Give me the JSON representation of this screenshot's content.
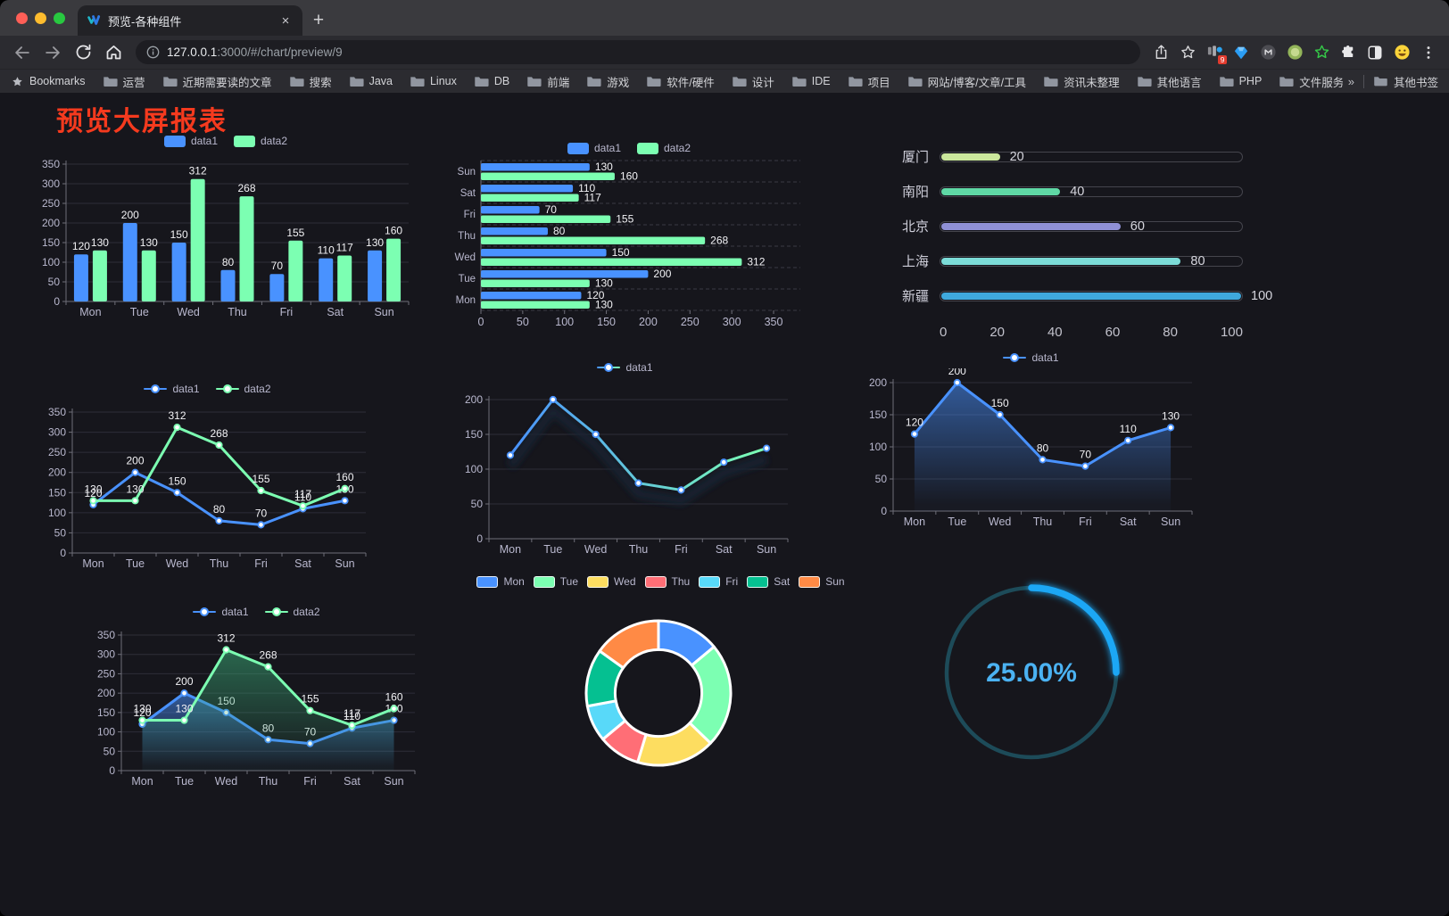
{
  "browser": {
    "tab": {
      "title": "预览-各种组件",
      "close_glyph": "×"
    },
    "new_tab_glyph": "+",
    "url": {
      "host": "127.0.0.1",
      "rest": ":3000/#/chart/preview/9"
    },
    "extension_badge": "9",
    "bookmarks": {
      "root_label": "Bookmarks",
      "folders": [
        "运营",
        "近期需要读的文章",
        "搜索",
        "Java",
        "Linux",
        "DB",
        "前端",
        "游戏",
        "软件/硬件",
        "设计",
        "IDE",
        "项目",
        "网站/博客/文章/工具",
        "资讯未整理",
        "其他语言",
        "PHP",
        "文件服务器"
      ],
      "overflow_chevron": "»",
      "other_label": "其他书签"
    }
  },
  "page": {
    "title": "预览大屏报表"
  },
  "colors": {
    "blue": "#4992ff",
    "green": "#7cffb2",
    "yellow": "#fddd60",
    "red": "#ff6e76",
    "cyan": "#58d9f9",
    "teal": "#05c091",
    "orange": "#ff8a45",
    "axis_text": "#b9b8ce",
    "grid": "#2e2e38",
    "axis_line": "#6e6e78",
    "dash_sep": "#3a3a44",
    "value_label": "#f2f2f5",
    "title_red": "#f53a1e",
    "gauge_track": "#1d4b59",
    "gauge_arc": "#1aa7f5",
    "gauge_text": "#4bb2f2"
  },
  "chart_data": [
    {
      "id": "bar-vertical",
      "type": "bar",
      "categories": [
        "Mon",
        "Tue",
        "Wed",
        "Thu",
        "Fri",
        "Sat",
        "Sun"
      ],
      "series": [
        {
          "name": "data1",
          "color": "#4992ff",
          "values": [
            120,
            200,
            150,
            80,
            70,
            110,
            130
          ]
        },
        {
          "name": "data2",
          "color": "#7cffb2",
          "values": [
            130,
            130,
            312,
            268,
            155,
            117,
            160
          ]
        }
      ],
      "ylim": [
        0,
        350
      ],
      "yticks": [
        0,
        50,
        100,
        150,
        200,
        250,
        300,
        350
      ],
      "grid": true,
      "legend_position": "top"
    },
    {
      "id": "bar-horizontal",
      "type": "bar",
      "orientation": "horizontal",
      "categories": [
        "Mon",
        "Tue",
        "Wed",
        "Thu",
        "Fri",
        "Sat",
        "Sun"
      ],
      "series": [
        {
          "name": "data1",
          "color": "#4992ff",
          "values": [
            120,
            200,
            150,
            80,
            70,
            110,
            130
          ]
        },
        {
          "name": "data2",
          "color": "#7cffb2",
          "values": [
            130,
            130,
            312,
            268,
            155,
            117,
            160
          ]
        }
      ],
      "xlim": [
        0,
        350
      ],
      "xticks": [
        0,
        50,
        100,
        150,
        200,
        250,
        300,
        350
      ],
      "legend_position": "top"
    },
    {
      "id": "progress-bars",
      "type": "bar",
      "orientation": "horizontal-progress",
      "items": [
        {
          "label": "厦门",
          "value": 20,
          "color": "#cbe79c"
        },
        {
          "label": "南阳",
          "value": 40,
          "color": "#5fd8a5"
        },
        {
          "label": "北京",
          "value": 60,
          "color": "#8f90d6"
        },
        {
          "label": "上海",
          "value": 80,
          "color": "#7cdcd8"
        },
        {
          "label": "新疆",
          "value": 100,
          "color": "#3fa9dd"
        }
      ],
      "xlim": [
        0,
        100
      ],
      "xticks": [
        0,
        20,
        40,
        60,
        80,
        100
      ]
    },
    {
      "id": "line-double",
      "type": "line",
      "categories": [
        "Mon",
        "Tue",
        "Wed",
        "Thu",
        "Fri",
        "Sat",
        "Sun"
      ],
      "series": [
        {
          "name": "data1",
          "color": "#4992ff",
          "values": [
            120,
            200,
            150,
            80,
            70,
            110,
            130
          ],
          "labels": true
        },
        {
          "name": "data2",
          "color": "#7cffb2",
          "values": [
            130,
            130,
            312,
            268,
            155,
            117,
            160
          ],
          "labels": true
        }
      ],
      "ylim": [
        0,
        350
      ],
      "yticks": [
        0,
        50,
        100,
        150,
        200,
        250,
        300,
        350
      ],
      "legend_position": "top"
    },
    {
      "id": "line-gradient",
      "type": "line",
      "categories": [
        "Mon",
        "Tue",
        "Wed",
        "Thu",
        "Fri",
        "Sat",
        "Sun"
      ],
      "series": [
        {
          "name": "data1",
          "color": "#4992ff",
          "gradient": [
            "#4992ff",
            "#7cffb2"
          ],
          "values": [
            120,
            200,
            150,
            80,
            70,
            110,
            130
          ],
          "labels": false,
          "shadow": true
        }
      ],
      "ylim": [
        0,
        200
      ],
      "yticks": [
        0,
        50,
        100,
        150,
        200
      ],
      "legend_position": "top"
    },
    {
      "id": "area-single",
      "type": "area",
      "categories": [
        "Mon",
        "Tue",
        "Wed",
        "Thu",
        "Fri",
        "Sat",
        "Sun"
      ],
      "series": [
        {
          "name": "data1",
          "color": "#4992ff",
          "values": [
            120,
            200,
            150,
            80,
            70,
            110,
            130
          ],
          "labels": true,
          "area": true
        }
      ],
      "ylim": [
        0,
        200
      ],
      "yticks": [
        0,
        50,
        100,
        150,
        200
      ],
      "legend_position": "top"
    },
    {
      "id": "area-double",
      "type": "area",
      "categories": [
        "Mon",
        "Tue",
        "Wed",
        "Thu",
        "Fri",
        "Sat",
        "Sun"
      ],
      "series": [
        {
          "name": "data1",
          "color": "#4992ff",
          "values": [
            120,
            200,
            150,
            80,
            70,
            110,
            130
          ],
          "labels": true,
          "area": true
        },
        {
          "name": "data2",
          "color": "#7cffb2",
          "values": [
            130,
            130,
            312,
            268,
            155,
            117,
            160
          ],
          "labels": true,
          "area": true,
          "area_color": "#3aa876"
        }
      ],
      "ylim": [
        0,
        350
      ],
      "yticks": [
        0,
        50,
        100,
        150,
        200,
        250,
        300,
        350
      ],
      "legend_position": "top"
    },
    {
      "id": "donut",
      "type": "pie",
      "labels": [
        "Mon",
        "Tue",
        "Wed",
        "Thu",
        "Fri",
        "Sat",
        "Sun"
      ],
      "values": [
        120,
        200,
        150,
        80,
        70,
        110,
        130
      ],
      "colors": [
        "#4992ff",
        "#7cffb2",
        "#fddd60",
        "#ff6e76",
        "#58d9f9",
        "#05c091",
        "#ff8a45"
      ],
      "inner_radius_ratio": 0.6,
      "legend_position": "top"
    },
    {
      "id": "gauge",
      "type": "pie",
      "subtype": "ring-progress",
      "percent": 25,
      "value_text": "25.00%"
    }
  ]
}
